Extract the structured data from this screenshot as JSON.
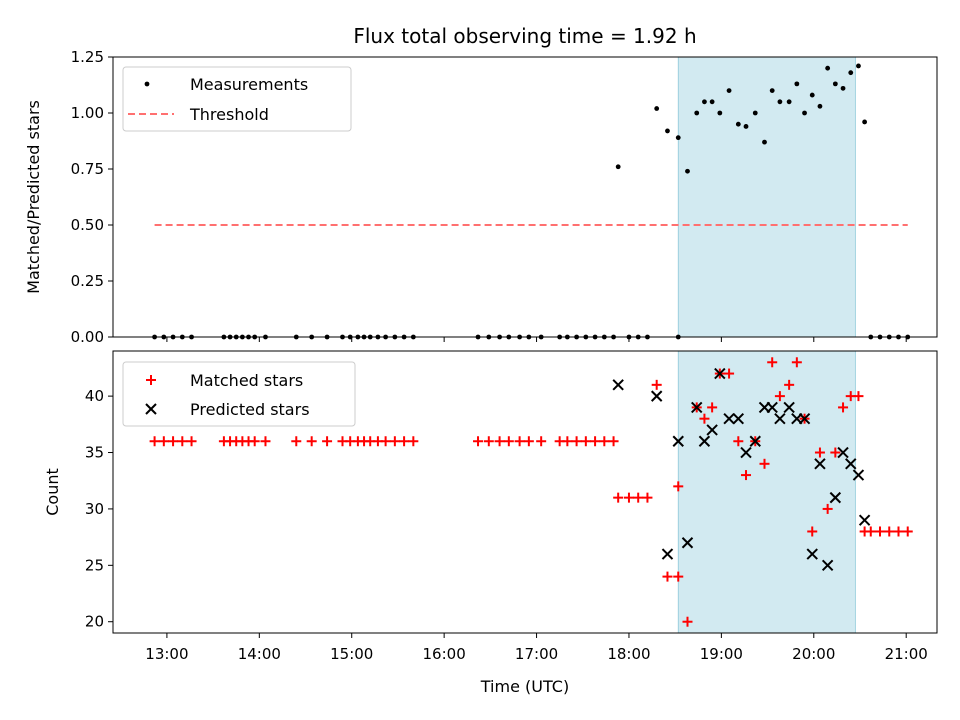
{
  "chart_data": [
    {
      "type": "scatter",
      "title": "Flux total observing time = 1.92 h",
      "xlabel": "",
      "ylabel": "Matched/Predicted stars",
      "xlim": [
        "12:25",
        "21:20"
      ],
      "ylim": [
        0,
        1.25
      ],
      "yticks": [
        "0.00",
        "0.25",
        "0.50",
        "0.75",
        "1.00",
        "1.25"
      ],
      "grid": false,
      "legend_position": "top-left",
      "shaded_region": {
        "x_start": "18:32",
        "x_end": "20:27",
        "color": "#add8e6"
      },
      "series": [
        {
          "name": "Measurements",
          "marker": "dot",
          "color": "#000000",
          "points": [
            [
              "12:52",
              0
            ],
            [
              "12:58",
              0
            ],
            [
              "13:04",
              0
            ],
            [
              "13:10",
              0
            ],
            [
              "13:16",
              0
            ],
            [
              "13:37",
              0
            ],
            [
              "13:41",
              0
            ],
            [
              "13:45",
              0
            ],
            [
              "13:49",
              0
            ],
            [
              "13:53",
              0
            ],
            [
              "13:57",
              0
            ],
            [
              "14:04",
              0
            ],
            [
              "14:24",
              0
            ],
            [
              "14:34",
              0
            ],
            [
              "14:44",
              0
            ],
            [
              "14:54",
              0
            ],
            [
              "14:59",
              0
            ],
            [
              "15:04",
              0
            ],
            [
              "15:08",
              0
            ],
            [
              "15:12",
              0
            ],
            [
              "15:17",
              0
            ],
            [
              "15:22",
              0
            ],
            [
              "15:28",
              0
            ],
            [
              "15:34",
              0
            ],
            [
              "15:40",
              0
            ],
            [
              "16:22",
              0
            ],
            [
              "16:29",
              0
            ],
            [
              "16:36",
              0
            ],
            [
              "16:42",
              0
            ],
            [
              "16:49",
              0
            ],
            [
              "16:55",
              0
            ],
            [
              "17:03",
              0
            ],
            [
              "17:15",
              0
            ],
            [
              "17:20",
              0
            ],
            [
              "17:26",
              0
            ],
            [
              "17:32",
              0
            ],
            [
              "17:38",
              0
            ],
            [
              "17:44",
              0
            ],
            [
              "17:50",
              0
            ],
            [
              "17:53",
              0.76
            ],
            [
              "18:00",
              0
            ],
            [
              "18:06",
              0
            ],
            [
              "18:12",
              0
            ],
            [
              "18:18",
              1.02
            ],
            [
              "18:25",
              0.92
            ],
            [
              "18:32",
              0
            ],
            [
              "18:32",
              0.89
            ],
            [
              "18:38",
              0.74
            ],
            [
              "18:44",
              1.0
            ],
            [
              "18:49",
              1.05
            ],
            [
              "18:54",
              1.05
            ],
            [
              "18:59",
              1.0
            ],
            [
              "19:05",
              1.1
            ],
            [
              "19:11",
              0.95
            ],
            [
              "19:16",
              0.94
            ],
            [
              "19:22",
              1.0
            ],
            [
              "19:28",
              0.87
            ],
            [
              "19:33",
              1.1
            ],
            [
              "19:38",
              1.05
            ],
            [
              "19:44",
              1.05
            ],
            [
              "19:49",
              1.13
            ],
            [
              "19:54",
              1.0
            ],
            [
              "19:59",
              1.08
            ],
            [
              "20:04",
              1.03
            ],
            [
              "20:09",
              1.2
            ],
            [
              "20:14",
              1.13
            ],
            [
              "20:19",
              1.11
            ],
            [
              "20:24",
              1.18
            ],
            [
              "20:29",
              1.21
            ],
            [
              "20:33",
              0.96
            ],
            [
              "20:37",
              0
            ],
            [
              "20:43",
              0
            ],
            [
              "20:49",
              0
            ],
            [
              "20:55",
              0
            ],
            [
              "21:01",
              0
            ]
          ]
        },
        {
          "name": "Threshold",
          "style": "dashed",
          "color": "#ff7070",
          "points": [
            [
              "12:52",
              0.5
            ],
            [
              "21:01",
              0.5
            ]
          ]
        }
      ]
    },
    {
      "type": "scatter",
      "title": "",
      "xlabel": "Time (UTC)",
      "ylabel": "Count",
      "xlim": [
        "12:25",
        "21:20"
      ],
      "ylim": [
        19,
        44
      ],
      "yticks": [
        "20",
        "25",
        "30",
        "35",
        "40"
      ],
      "xticks": [
        "13:00",
        "14:00",
        "15:00",
        "16:00",
        "17:00",
        "18:00",
        "19:00",
        "20:00",
        "21:00"
      ],
      "grid": false,
      "legend_position": "top-left",
      "shaded_region": {
        "x_start": "18:32",
        "x_end": "20:27",
        "color": "#add8e6"
      },
      "series": [
        {
          "name": "Matched stars",
          "marker": "plus",
          "color": "#ff0000",
          "points": [
            [
              "12:52",
              36
            ],
            [
              "12:58",
              36
            ],
            [
              "13:04",
              36
            ],
            [
              "13:10",
              36
            ],
            [
              "13:16",
              36
            ],
            [
              "13:37",
              36
            ],
            [
              "13:41",
              36
            ],
            [
              "13:45",
              36
            ],
            [
              "13:49",
              36
            ],
            [
              "13:53",
              36
            ],
            [
              "13:57",
              36
            ],
            [
              "14:04",
              36
            ],
            [
              "14:24",
              36
            ],
            [
              "14:34",
              36
            ],
            [
              "14:44",
              36
            ],
            [
              "14:54",
              36
            ],
            [
              "14:59",
              36
            ],
            [
              "15:04",
              36
            ],
            [
              "15:08",
              36
            ],
            [
              "15:12",
              36
            ],
            [
              "15:17",
              36
            ],
            [
              "15:22",
              36
            ],
            [
              "15:28",
              36
            ],
            [
              "15:34",
              36
            ],
            [
              "15:40",
              36
            ],
            [
              "16:22",
              36
            ],
            [
              "16:29",
              36
            ],
            [
              "16:36",
              36
            ],
            [
              "16:42",
              36
            ],
            [
              "16:49",
              36
            ],
            [
              "16:55",
              36
            ],
            [
              "17:03",
              36
            ],
            [
              "17:15",
              36
            ],
            [
              "17:20",
              36
            ],
            [
              "17:26",
              36
            ],
            [
              "17:32",
              36
            ],
            [
              "17:38",
              36
            ],
            [
              "17:44",
              36
            ],
            [
              "17:50",
              36
            ],
            [
              "17:53",
              31
            ],
            [
              "18:00",
              31
            ],
            [
              "18:06",
              31
            ],
            [
              "18:12",
              31
            ],
            [
              "18:18",
              41
            ],
            [
              "18:25",
              24
            ],
            [
              "18:32",
              24
            ],
            [
              "18:32",
              32
            ],
            [
              "18:38",
              20
            ],
            [
              "18:44",
              39
            ],
            [
              "18:49",
              38
            ],
            [
              "18:54",
              39
            ],
            [
              "18:59",
              42
            ],
            [
              "19:05",
              42
            ],
            [
              "19:11",
              36
            ],
            [
              "19:16",
              33
            ],
            [
              "19:22",
              36
            ],
            [
              "19:28",
              34
            ],
            [
              "19:33",
              43
            ],
            [
              "19:38",
              40
            ],
            [
              "19:44",
              41
            ],
            [
              "19:49",
              43
            ],
            [
              "19:54",
              38
            ],
            [
              "19:59",
              28
            ],
            [
              "20:04",
              35
            ],
            [
              "20:09",
              30
            ],
            [
              "20:14",
              35
            ],
            [
              "20:19",
              39
            ],
            [
              "20:24",
              40
            ],
            [
              "20:29",
              40
            ],
            [
              "20:33",
              28
            ],
            [
              "20:37",
              28
            ],
            [
              "20:43",
              28
            ],
            [
              "20:49",
              28
            ],
            [
              "20:55",
              28
            ],
            [
              "21:01",
              28
            ]
          ]
        },
        {
          "name": "Predicted stars",
          "marker": "x",
          "color": "#000000",
          "points": [
            [
              "17:53",
              41
            ],
            [
              "18:18",
              40
            ],
            [
              "18:25",
              26
            ],
            [
              "18:32",
              36
            ],
            [
              "18:38",
              27
            ],
            [
              "18:44",
              39
            ],
            [
              "18:49",
              36
            ],
            [
              "18:54",
              37
            ],
            [
              "18:59",
              42
            ],
            [
              "19:05",
              38
            ],
            [
              "19:11",
              38
            ],
            [
              "19:16",
              35
            ],
            [
              "19:22",
              36
            ],
            [
              "19:28",
              39
            ],
            [
              "19:33",
              39
            ],
            [
              "19:38",
              38
            ],
            [
              "19:44",
              39
            ],
            [
              "19:49",
              38
            ],
            [
              "19:54",
              38
            ],
            [
              "19:59",
              26
            ],
            [
              "20:04",
              34
            ],
            [
              "20:09",
              25
            ],
            [
              "20:14",
              31
            ],
            [
              "20:19",
              35
            ],
            [
              "20:24",
              34
            ],
            [
              "20:29",
              33
            ],
            [
              "20:33",
              29
            ]
          ]
        }
      ]
    }
  ]
}
